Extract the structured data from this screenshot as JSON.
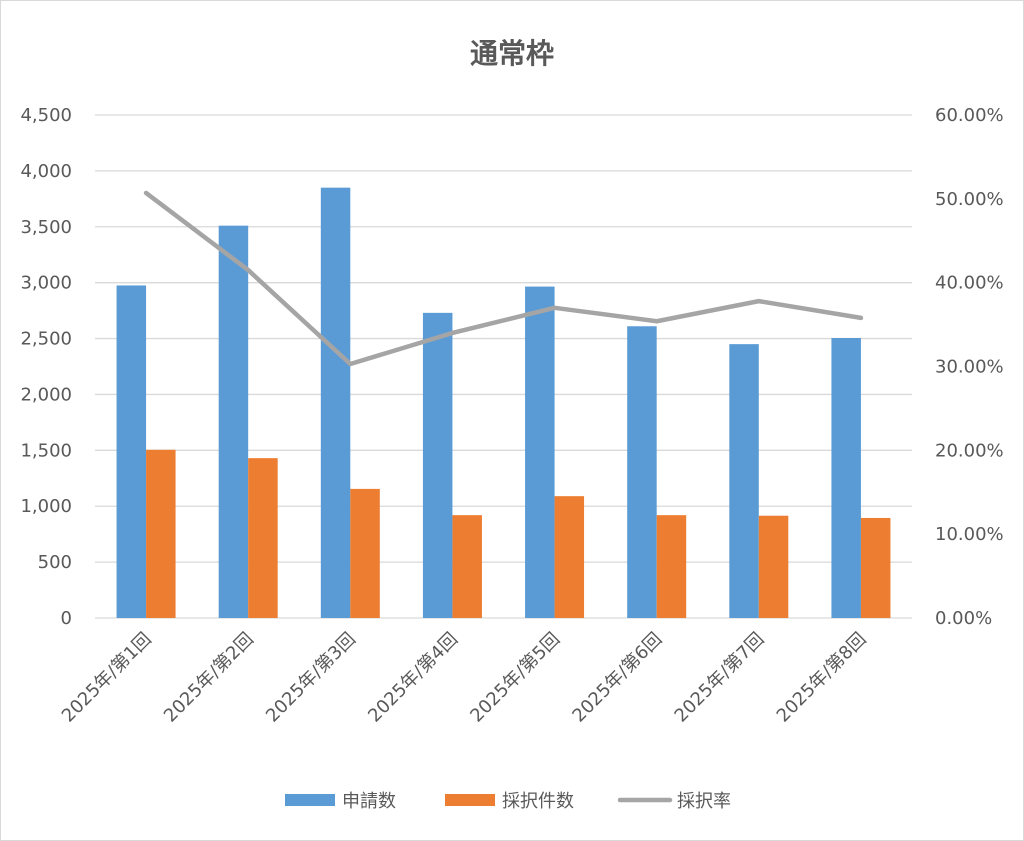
{
  "chart_data": {
    "type": "bar",
    "title": "通常枠",
    "categories": [
      "2025年/第1回",
      "2025年/第2回",
      "2025年/第3回",
      "2025年/第4回",
      "2025年/第5回",
      "2025年/第6回",
      "2025年/第7回",
      "2025年/第8回"
    ],
    "series": [
      {
        "name": "申請数",
        "type": "bar",
        "axis": "left",
        "color": "#5B9BD5",
        "values": [
          2975,
          3510,
          3850,
          2730,
          2965,
          2610,
          2450,
          2505
        ]
      },
      {
        "name": "採択件数",
        "type": "bar",
        "axis": "left",
        "color": "#ED7D31",
        "values": [
          1505,
          1430,
          1155,
          920,
          1090,
          920,
          915,
          895
        ]
      },
      {
        "name": "採択率",
        "type": "line",
        "axis": "right",
        "color": "#A5A5A5",
        "values": [
          50.7,
          41.5,
          30.3,
          34.0,
          37.0,
          35.4,
          37.8,
          35.8
        ]
      }
    ],
    "y_left": {
      "range": [
        0,
        4500
      ],
      "step": 500,
      "tick_labels": [
        "0",
        "500",
        "1,000",
        "1,500",
        "2,000",
        "2,500",
        "3,000",
        "3,500",
        "4,000",
        "4,500"
      ]
    },
    "y_right": {
      "range": [
        0,
        60
      ],
      "step": 10,
      "tick_labels": [
        "0.00%",
        "10.00%",
        "20.00%",
        "30.00%",
        "40.00%",
        "50.00%",
        "60.00%"
      ]
    },
    "grid": true,
    "grid_color": "#D9D9D9",
    "legend": "bottom"
  }
}
